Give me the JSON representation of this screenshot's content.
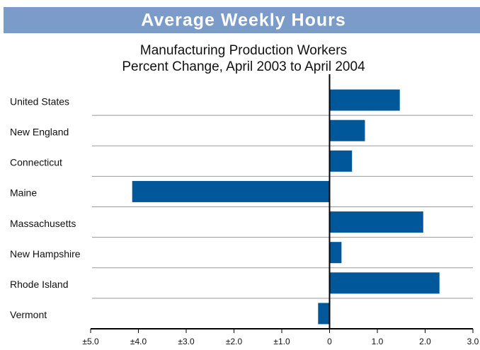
{
  "chart_data": {
    "type": "barh",
    "title": "Average Weekly Hours",
    "subtitle": [
      "Manufacturing Production Workers",
      "Percent Change, April 2003 to April 2004"
    ],
    "categories": [
      "United States",
      "New England",
      "Connecticut",
      "Maine",
      "Massachusetts",
      "New Hampshire",
      "Rhode Island",
      "Vermont"
    ],
    "values": [
      1.47,
      0.74,
      0.47,
      -4.13,
      1.96,
      0.25,
      2.3,
      -0.24
    ],
    "color": "#00589b",
    "xlim": [
      -5,
      3
    ],
    "xticks": [
      {
        "value": -5,
        "label": "±5.0"
      },
      {
        "value": -4,
        "label": "±4.0"
      },
      {
        "value": -3,
        "label": "±3.0"
      },
      {
        "value": -2,
        "label": "±2.0"
      },
      {
        "value": -1,
        "label": "±1.0"
      },
      0,
      {
        "value": 1,
        "label": "1.0"
      },
      {
        "value": 2,
        "label": "2.0"
      },
      {
        "value": 3,
        "label": "3.0"
      }
    ]
  }
}
